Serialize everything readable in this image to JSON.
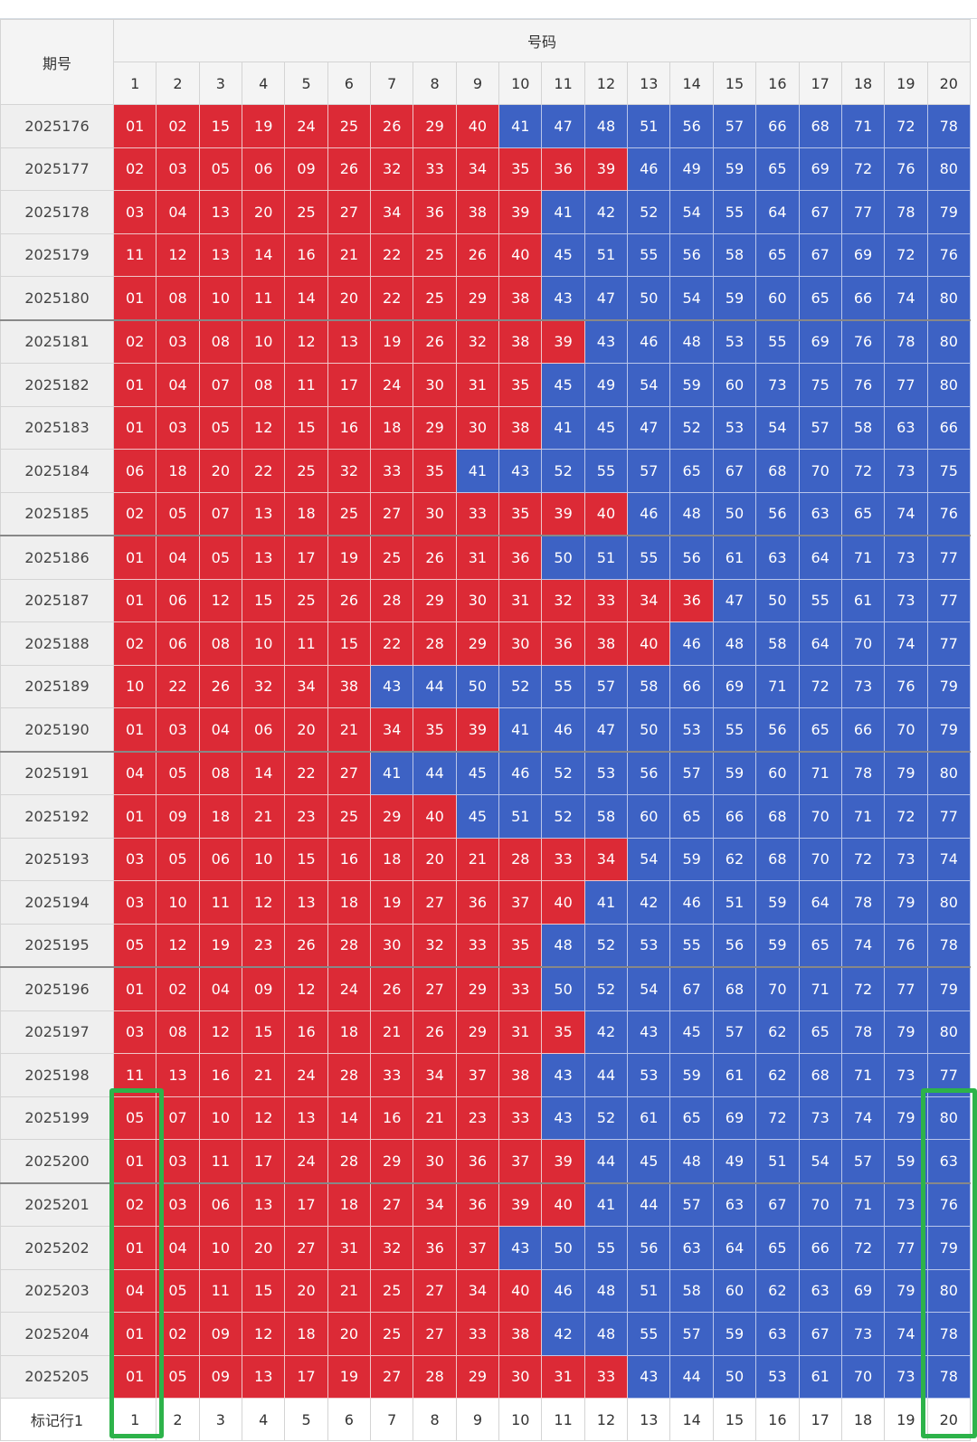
{
  "header": {
    "period": "期号",
    "numbers": "号码",
    "columns": [
      "1",
      "2",
      "3",
      "4",
      "5",
      "6",
      "7",
      "8",
      "9",
      "10",
      "11",
      "12",
      "13",
      "14",
      "15",
      "16",
      "17",
      "18",
      "19",
      "20"
    ]
  },
  "table": {
    "rows": [
      {
        "period": "2025176",
        "red": [
          "01",
          "02",
          "15",
          "19",
          "24",
          "25",
          "26",
          "29",
          "40"
        ],
        "blue": [
          "41",
          "47",
          "48",
          "51",
          "56",
          "57",
          "66",
          "68",
          "71",
          "72",
          "78"
        ]
      },
      {
        "period": "2025177",
        "red": [
          "02",
          "03",
          "05",
          "06",
          "09",
          "26",
          "32",
          "33",
          "34",
          "35",
          "36",
          "39"
        ],
        "blue": [
          "46",
          "49",
          "59",
          "65",
          "69",
          "72",
          "76",
          "80"
        ]
      },
      {
        "period": "2025178",
        "red": [
          "03",
          "04",
          "13",
          "20",
          "25",
          "27",
          "34",
          "36",
          "38",
          "39"
        ],
        "blue": [
          "41",
          "42",
          "52",
          "54",
          "55",
          "64",
          "67",
          "77",
          "78",
          "79"
        ]
      },
      {
        "period": "2025179",
        "red": [
          "11",
          "12",
          "13",
          "14",
          "16",
          "21",
          "22",
          "25",
          "26",
          "40"
        ],
        "blue": [
          "45",
          "51",
          "55",
          "56",
          "58",
          "65",
          "67",
          "69",
          "72",
          "76"
        ]
      },
      {
        "period": "2025180",
        "red": [
          "01",
          "08",
          "10",
          "11",
          "14",
          "20",
          "22",
          "25",
          "29",
          "38"
        ],
        "blue": [
          "43",
          "47",
          "50",
          "54",
          "59",
          "60",
          "65",
          "66",
          "74",
          "80"
        ]
      },
      {
        "period": "2025181",
        "red": [
          "02",
          "03",
          "08",
          "10",
          "12",
          "13",
          "19",
          "26",
          "32",
          "38",
          "39"
        ],
        "blue": [
          "43",
          "46",
          "48",
          "53",
          "55",
          "69",
          "76",
          "78",
          "80"
        ]
      },
      {
        "period": "2025182",
        "red": [
          "01",
          "04",
          "07",
          "08",
          "11",
          "17",
          "24",
          "30",
          "31",
          "35"
        ],
        "blue": [
          "45",
          "49",
          "54",
          "59",
          "60",
          "73",
          "75",
          "76",
          "77",
          "80"
        ]
      },
      {
        "period": "2025183",
        "red": [
          "01",
          "03",
          "05",
          "12",
          "15",
          "16",
          "18",
          "29",
          "30",
          "38"
        ],
        "blue": [
          "41",
          "45",
          "47",
          "52",
          "53",
          "54",
          "57",
          "58",
          "63",
          "66"
        ]
      },
      {
        "period": "2025184",
        "red": [
          "06",
          "18",
          "20",
          "22",
          "25",
          "32",
          "33",
          "35"
        ],
        "blue": [
          "41",
          "43",
          "52",
          "55",
          "57",
          "65",
          "67",
          "68",
          "70",
          "72",
          "73",
          "75"
        ]
      },
      {
        "period": "2025185",
        "red": [
          "02",
          "05",
          "07",
          "13",
          "18",
          "25",
          "27",
          "30",
          "33",
          "35",
          "39",
          "40"
        ],
        "blue": [
          "46",
          "48",
          "50",
          "56",
          "63",
          "65",
          "74",
          "76"
        ]
      },
      {
        "period": "2025186",
        "red": [
          "01",
          "04",
          "05",
          "13",
          "17",
          "19",
          "25",
          "26",
          "31",
          "36"
        ],
        "blue": [
          "50",
          "51",
          "55",
          "56",
          "61",
          "63",
          "64",
          "71",
          "73",
          "77"
        ]
      },
      {
        "period": "2025187",
        "red": [
          "01",
          "06",
          "12",
          "15",
          "25",
          "26",
          "28",
          "29",
          "30",
          "31",
          "32",
          "33",
          "34",
          "36"
        ],
        "blue": [
          "47",
          "50",
          "55",
          "61",
          "73",
          "77"
        ]
      },
      {
        "period": "2025188",
        "red": [
          "02",
          "06",
          "08",
          "10",
          "11",
          "15",
          "22",
          "28",
          "29",
          "30",
          "36",
          "38",
          "40"
        ],
        "blue": [
          "46",
          "48",
          "58",
          "64",
          "70",
          "74",
          "77"
        ]
      },
      {
        "period": "2025189",
        "red": [
          "10",
          "22",
          "26",
          "32",
          "34",
          "38"
        ],
        "blue": [
          "43",
          "44",
          "50",
          "52",
          "55",
          "57",
          "58",
          "66",
          "69",
          "71",
          "72",
          "73",
          "76",
          "79"
        ]
      },
      {
        "period": "2025190",
        "red": [
          "01",
          "03",
          "04",
          "06",
          "20",
          "21",
          "34",
          "35",
          "39"
        ],
        "blue": [
          "41",
          "46",
          "47",
          "50",
          "53",
          "55",
          "56",
          "65",
          "66",
          "70",
          "79"
        ]
      },
      {
        "period": "2025191",
        "red": [
          "04",
          "05",
          "08",
          "14",
          "22",
          "27"
        ],
        "blue": [
          "41",
          "44",
          "45",
          "46",
          "52",
          "53",
          "56",
          "57",
          "59",
          "60",
          "71",
          "78",
          "79",
          "80"
        ]
      },
      {
        "period": "2025192",
        "red": [
          "01",
          "09",
          "18",
          "21",
          "23",
          "25",
          "29",
          "40"
        ],
        "blue": [
          "45",
          "51",
          "52",
          "58",
          "60",
          "65",
          "66",
          "68",
          "70",
          "71",
          "72",
          "77"
        ]
      },
      {
        "period": "2025193",
        "red": [
          "03",
          "05",
          "06",
          "10",
          "15",
          "16",
          "18",
          "20",
          "21",
          "28",
          "33",
          "34"
        ],
        "blue": [
          "54",
          "59",
          "62",
          "68",
          "70",
          "72",
          "73",
          "74"
        ]
      },
      {
        "period": "2025194",
        "red": [
          "03",
          "10",
          "11",
          "12",
          "13",
          "18",
          "19",
          "27",
          "36",
          "37",
          "40"
        ],
        "blue": [
          "41",
          "42",
          "46",
          "51",
          "59",
          "64",
          "78",
          "79",
          "80"
        ]
      },
      {
        "period": "2025195",
        "red": [
          "05",
          "12",
          "19",
          "23",
          "26",
          "28",
          "30",
          "32",
          "33",
          "35"
        ],
        "blue": [
          "48",
          "52",
          "53",
          "55",
          "56",
          "59",
          "65",
          "74",
          "76",
          "78"
        ]
      },
      {
        "period": "2025196",
        "red": [
          "01",
          "02",
          "04",
          "09",
          "12",
          "24",
          "26",
          "27",
          "29",
          "33"
        ],
        "blue": [
          "50",
          "52",
          "54",
          "67",
          "68",
          "70",
          "71",
          "72",
          "77",
          "79"
        ]
      },
      {
        "period": "2025197",
        "red": [
          "03",
          "08",
          "12",
          "15",
          "16",
          "18",
          "21",
          "26",
          "29",
          "31",
          "35"
        ],
        "blue": [
          "42",
          "43",
          "45",
          "57",
          "62",
          "65",
          "78",
          "79",
          "80"
        ]
      },
      {
        "period": "2025198",
        "red": [
          "11",
          "13",
          "16",
          "21",
          "24",
          "28",
          "33",
          "34",
          "37",
          "38"
        ],
        "blue": [
          "43",
          "44",
          "53",
          "59",
          "61",
          "62",
          "68",
          "71",
          "73",
          "77"
        ]
      },
      {
        "period": "2025199",
        "red": [
          "05",
          "07",
          "10",
          "12",
          "13",
          "14",
          "16",
          "21",
          "23",
          "33"
        ],
        "blue": [
          "43",
          "52",
          "61",
          "65",
          "69",
          "72",
          "73",
          "74",
          "79",
          "80"
        ]
      },
      {
        "period": "2025200",
        "red": [
          "01",
          "03",
          "11",
          "17",
          "24",
          "28",
          "29",
          "30",
          "36",
          "37",
          "39"
        ],
        "blue": [
          "44",
          "45",
          "48",
          "49",
          "51",
          "54",
          "57",
          "59",
          "63"
        ]
      },
      {
        "period": "2025201",
        "red": [
          "02",
          "03",
          "06",
          "13",
          "17",
          "18",
          "27",
          "34",
          "36",
          "39",
          "40"
        ],
        "blue": [
          "41",
          "44",
          "57",
          "63",
          "67",
          "70",
          "71",
          "73",
          "76"
        ]
      },
      {
        "period": "2025202",
        "red": [
          "01",
          "04",
          "10",
          "20",
          "27",
          "31",
          "32",
          "36",
          "37"
        ],
        "blue": [
          "43",
          "50",
          "55",
          "56",
          "63",
          "64",
          "65",
          "66",
          "72",
          "77",
          "79"
        ]
      },
      {
        "period": "2025203",
        "red": [
          "04",
          "05",
          "11",
          "15",
          "20",
          "21",
          "25",
          "27",
          "34",
          "40"
        ],
        "blue": [
          "46",
          "48",
          "51",
          "58",
          "60",
          "62",
          "63",
          "69",
          "79",
          "80"
        ]
      },
      {
        "period": "2025204",
        "red": [
          "01",
          "02",
          "09",
          "12",
          "18",
          "20",
          "25",
          "27",
          "33",
          "38"
        ],
        "blue": [
          "42",
          "48",
          "55",
          "57",
          "59",
          "63",
          "67",
          "73",
          "74",
          "78"
        ]
      },
      {
        "period": "2025205",
        "red": [
          "01",
          "05",
          "09",
          "13",
          "17",
          "19",
          "27",
          "28",
          "29",
          "30",
          "31",
          "33"
        ],
        "blue": [
          "43",
          "44",
          "50",
          "53",
          "61",
          "70",
          "73",
          "78"
        ]
      }
    ]
  },
  "footer": {
    "label": "标记行1",
    "marks": [
      "1",
      "2",
      "3",
      "4",
      "5",
      "6",
      "7",
      "8",
      "9",
      "10",
      "11",
      "12",
      "13",
      "14",
      "15",
      "16",
      "17",
      "18",
      "19",
      "20"
    ]
  }
}
